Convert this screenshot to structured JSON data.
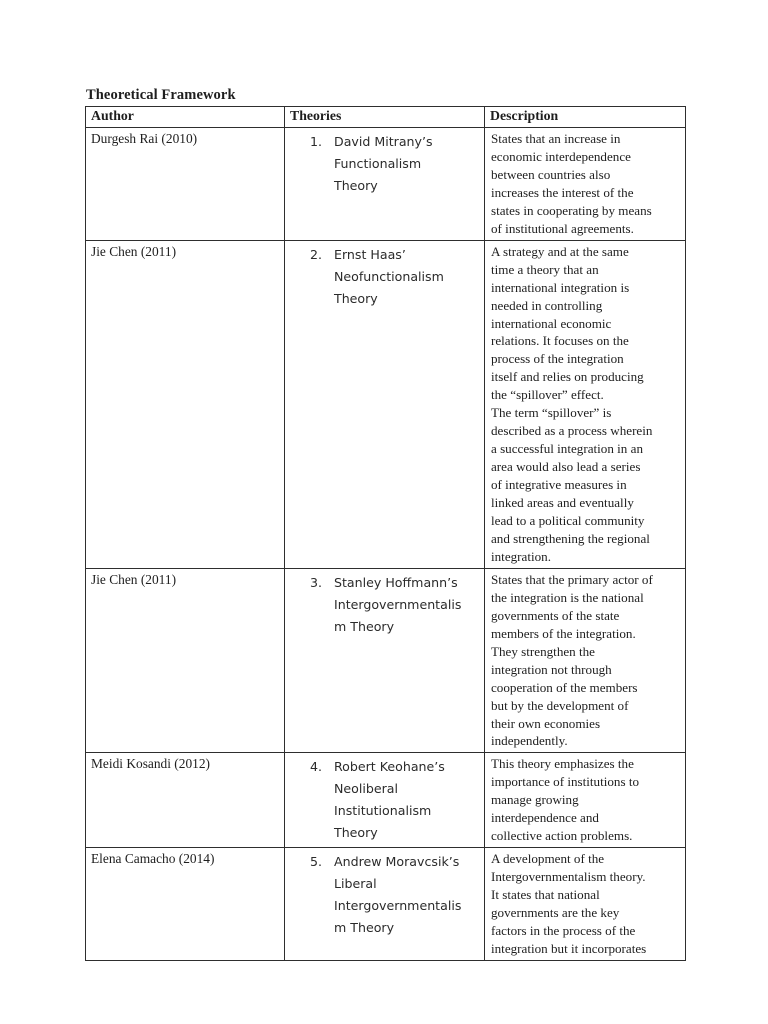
{
  "colors": {
    "page_background": "#ffffff",
    "text": "#1e1e1e",
    "table_border": "#2e2e2e"
  },
  "document": {
    "title": "Theoretical Framework",
    "table": {
      "headers": [
        "Author",
        "Theories",
        "Description"
      ],
      "rows": [
        {
          "author": "Durgesh Rai (2010)",
          "num": "1.",
          "theory": "David Mitrany’s\nFunctionalism\nTheory",
          "description": "States that an increase in\neconomic interdependence\nbetween countries also\nincreases the interest of the\nstates in cooperating by means\nof institutional agreements."
        },
        {
          "author": "Jie Chen (2011)",
          "num": "2.",
          "theory": "Ernst Haas’\nNeofunctionalism\nTheory",
          "description": "A strategy and at the same\ntime a theory that an\ninternational integration is\nneeded in controlling\ninternational economic\nrelations. It focuses on the\nprocess of the integration\nitself and relies on producing\nthe “spillover” effect.\nThe term “spillover” is\ndescribed as a process wherein\na successful integration in an\narea would also lead a series\nof integrative measures in\nlinked areas and eventually\nlead to a political community\nand strengthening the regional\nintegration."
        },
        {
          "author": "Jie Chen (2011)",
          "num": "3.",
          "theory": "Stanley Hoffmann’s\nIntergovernmentalis\nm Theory",
          "description": "States that the primary actor of\nthe integration is the national\ngovernments of the state\nmembers of the integration.\nThey strengthen the\nintegration not through\ncooperation of the members\nbut by the development of\ntheir own economies\nindependently."
        },
        {
          "author": "Meidi Kosandi (2012)",
          "num": "4.",
          "theory": "Robert Keohane’s\nNeoliberal\nInstitutionalism\nTheory",
          "description": "This theory emphasizes the\nimportance of institutions to\nmanage growing\ninterdependence and\ncollective action problems."
        },
        {
          "author": "Elena Camacho (2014)",
          "num": "5.",
          "theory": "Andrew Moravcsik’s\nLiberal\nIntergovernmentalis\nm Theory",
          "description": "A development of the\nIntergovernmentalism theory.\nIt states that national\ngovernments are the key\nfactors in the process of the\nintegration but it incorporates"
        }
      ]
    }
  }
}
